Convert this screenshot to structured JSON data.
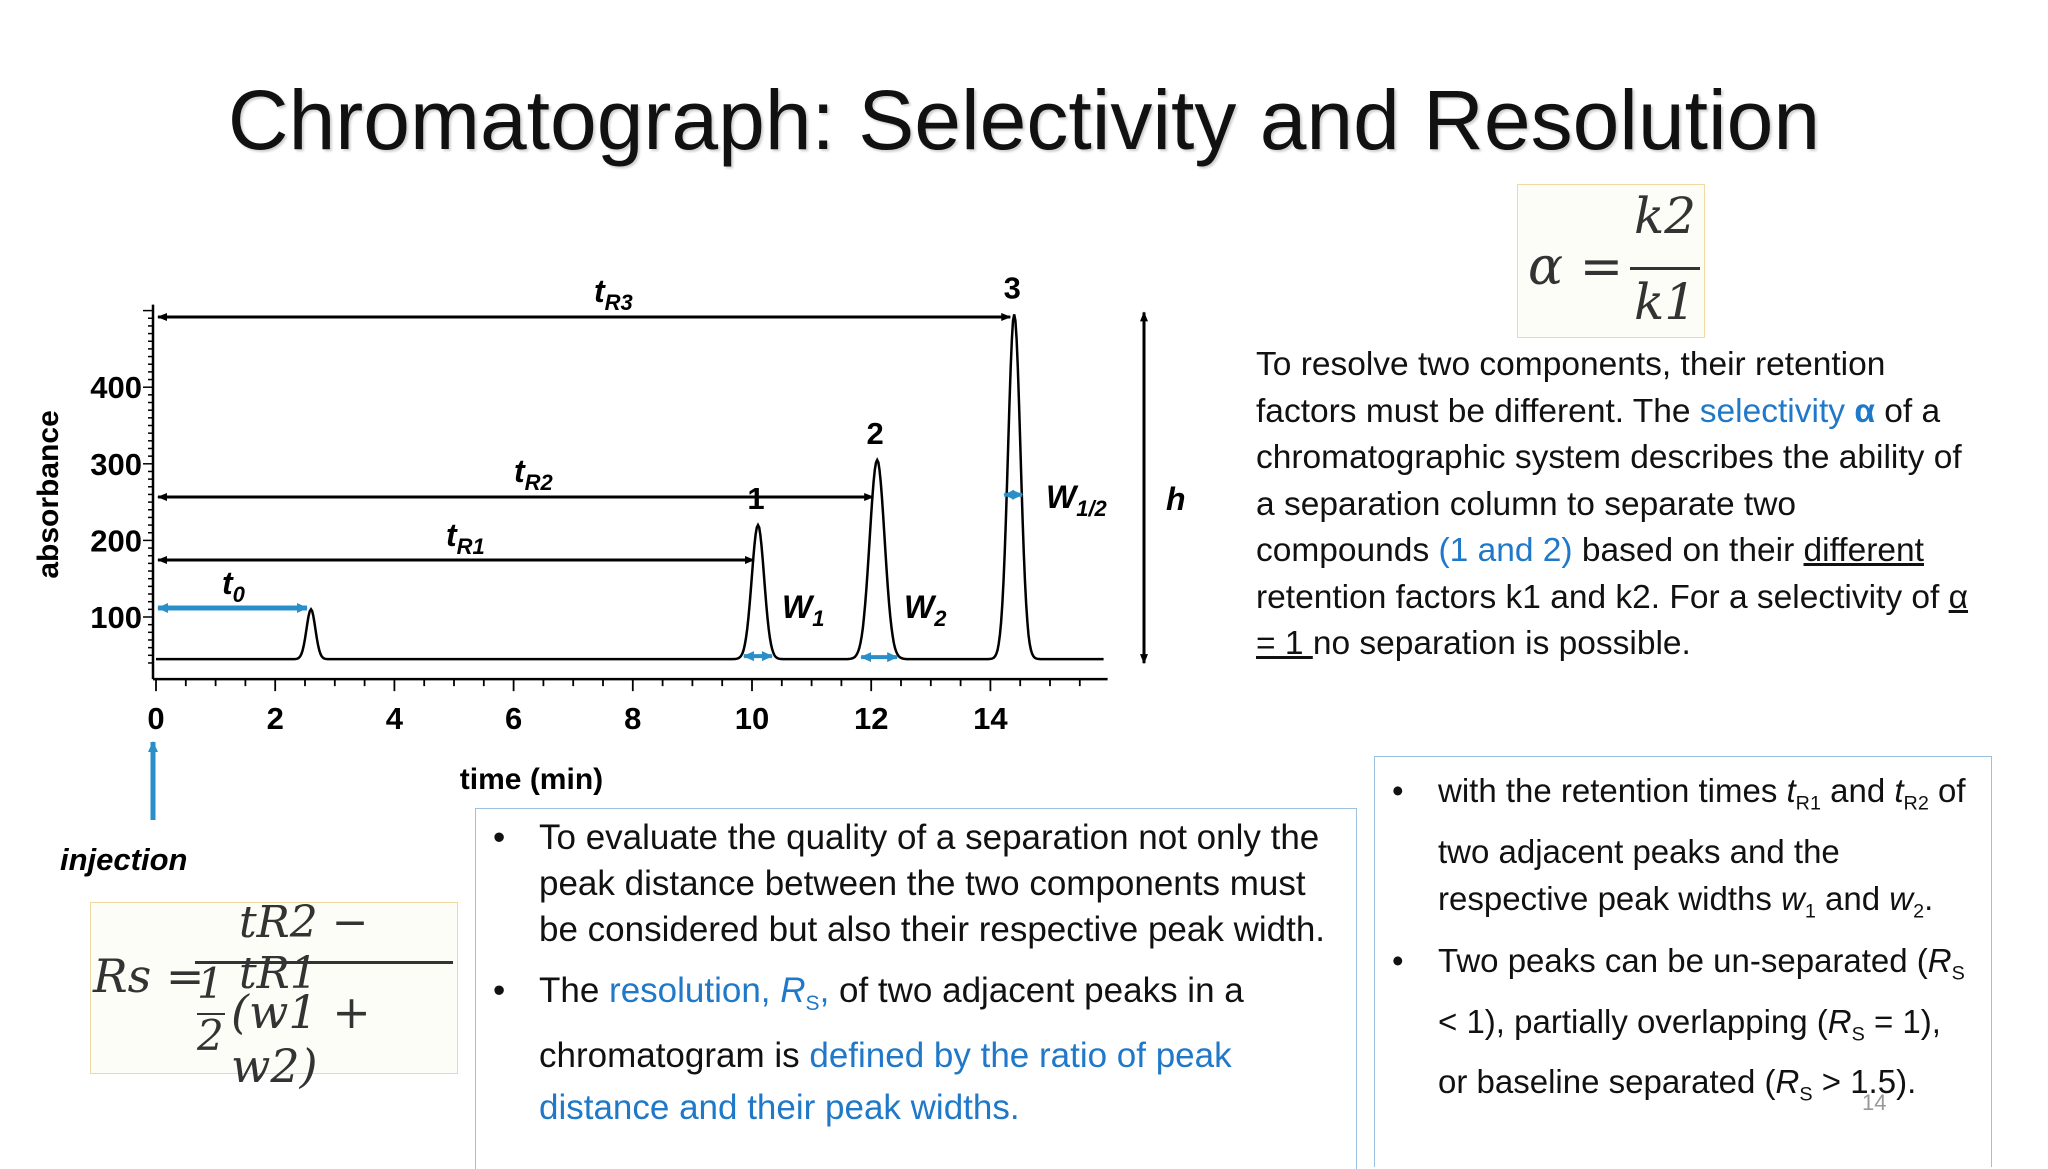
{
  "slide": {
    "title": "Chromatograph: Selectivity and Resolution",
    "page_number": "14"
  },
  "chart_data": {
    "type": "line",
    "xlabel": "time (min)",
    "ylabel": "absorbance",
    "x_ticks": [
      "0",
      "2",
      "4",
      "6",
      "8",
      "10",
      "12",
      "14"
    ],
    "y_ticks": [
      "100",
      "200",
      "300",
      "400"
    ],
    "xlim": [
      0,
      16
    ],
    "ylim": [
      40,
      500
    ],
    "baseline": 45,
    "peaks": [
      {
        "label": "",
        "t": 2.6,
        "height": 110,
        "width": 0.18
      },
      {
        "label": "1",
        "t": 10.1,
        "height": 220,
        "width": 0.25
      },
      {
        "label": "2",
        "t": 12.1,
        "height": 305,
        "width": 0.3
      },
      {
        "label": "3",
        "t": 14.4,
        "height": 495,
        "width": 0.25
      }
    ],
    "annotations": {
      "t0": "t0",
      "tR1": "tR1",
      "tR2": "tR2",
      "tR3": "tR3",
      "W1": "W1",
      "W2": "W2",
      "Whalf": "W1/2",
      "h": "h",
      "injection": "injection"
    },
    "colors": {
      "arrow_blue": "#2a8fc8",
      "line": "#000000"
    }
  },
  "formulas": {
    "alpha": {
      "lhs": "α =",
      "num": "k2",
      "den": "k1"
    },
    "rs": {
      "lhs": "Rs =",
      "num": "tR2 − tR1",
      "den_a": "1",
      "den_b": "2",
      "den_c": "(w1 + w2)"
    }
  },
  "paragraph": {
    "p1": "To resolve two components, their retention factors must be different. The ",
    "selectivity": "selectivity ",
    "alpha": "α",
    "p2": " of a chromatographic system describes the ability of a separation column to separate two compounds ",
    "compounds": "(1 and 2)",
    "p3": " based on their ",
    "different": "different",
    "p4": " retention factors k1 and k2. For a selectivity of ",
    "alpha_eq": "α = 1 ",
    "p5": "no separation is possible."
  },
  "mid_box": {
    "bullet": "•",
    "b1": "To evaluate the quality of a separation not only the peak distance between the two components must be considered but also their respective peak width.",
    "b2_a": "The ",
    "b2_res": "resolution, ",
    "b2_rs_r": "R",
    "b2_rs_s": "S",
    "b2_comma": ",",
    "b2_b": " of two adjacent peaks in a chromatogram is ",
    "b2_def": "defined by the ratio of peak distance and their peak widths."
  },
  "right_box": {
    "bullet": "•",
    "b1_a": "with the retention times ",
    "t": "t",
    "r1": "R1",
    "and": " and ",
    "r2": "R2",
    "b1_b": " of two adjacent peaks and the respective peak widths ",
    "w": "w",
    "one": "1",
    "two": "2",
    "b1_c": ".",
    "b2_a": "Two peaks can be un-separated (",
    "R": "R",
    "S": "S",
    "b2_b": " < 1), partially overlapping (",
    "b2_c": " = 1), or baseline separated (",
    "b2_d": " > 1.5)."
  }
}
